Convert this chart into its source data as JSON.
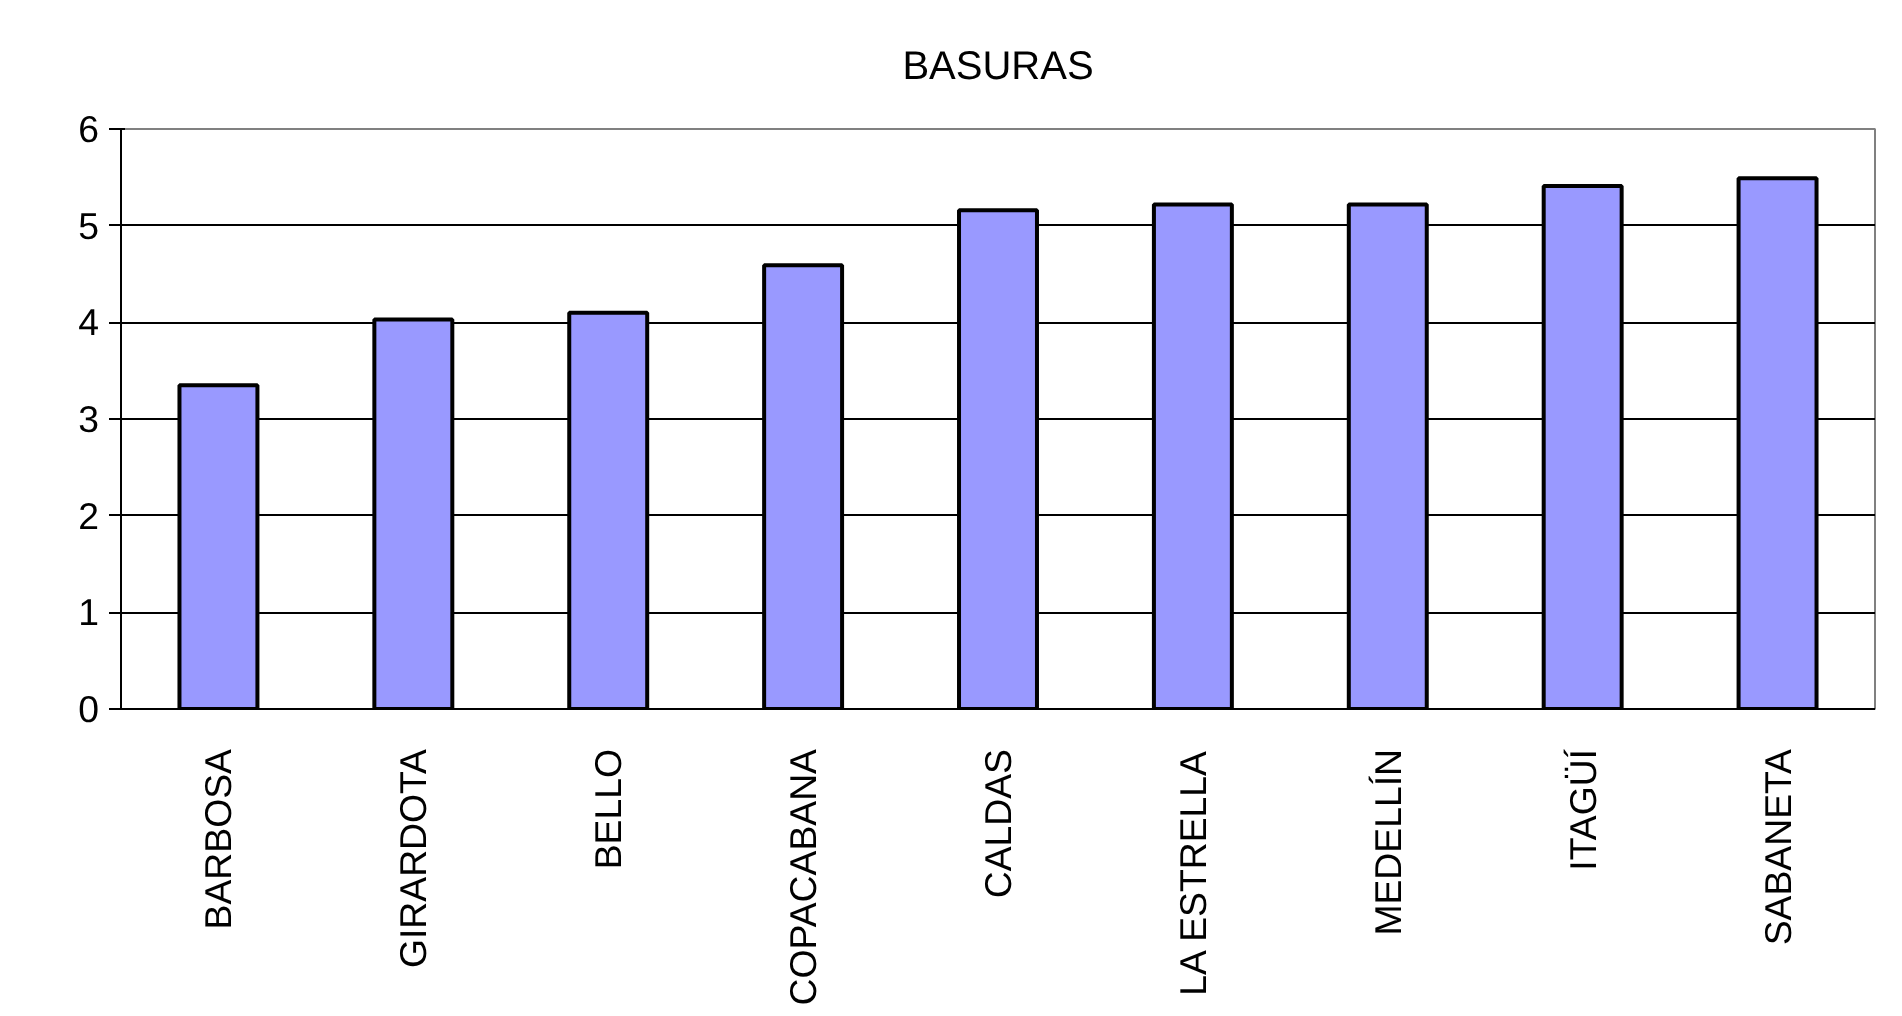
{
  "chart_data": {
    "type": "bar",
    "title": "BASURAS",
    "categories": [
      "BARBOSA",
      "GIRARDOTA",
      "BELLO",
      "COPACABANA",
      "CALDAS",
      "LA ESTRELLA",
      "MEDELLÍN",
      "ITAGÜÍ",
      "SABANETA"
    ],
    "values": [
      3.35,
      4.03,
      4.1,
      4.59,
      5.16,
      5.22,
      5.22,
      5.41,
      5.49
    ],
    "color": "#9999ff",
    "ylim": [
      0,
      6
    ],
    "yticks": [
      0,
      1,
      2,
      3,
      4,
      5,
      6
    ],
    "grid": "y"
  }
}
